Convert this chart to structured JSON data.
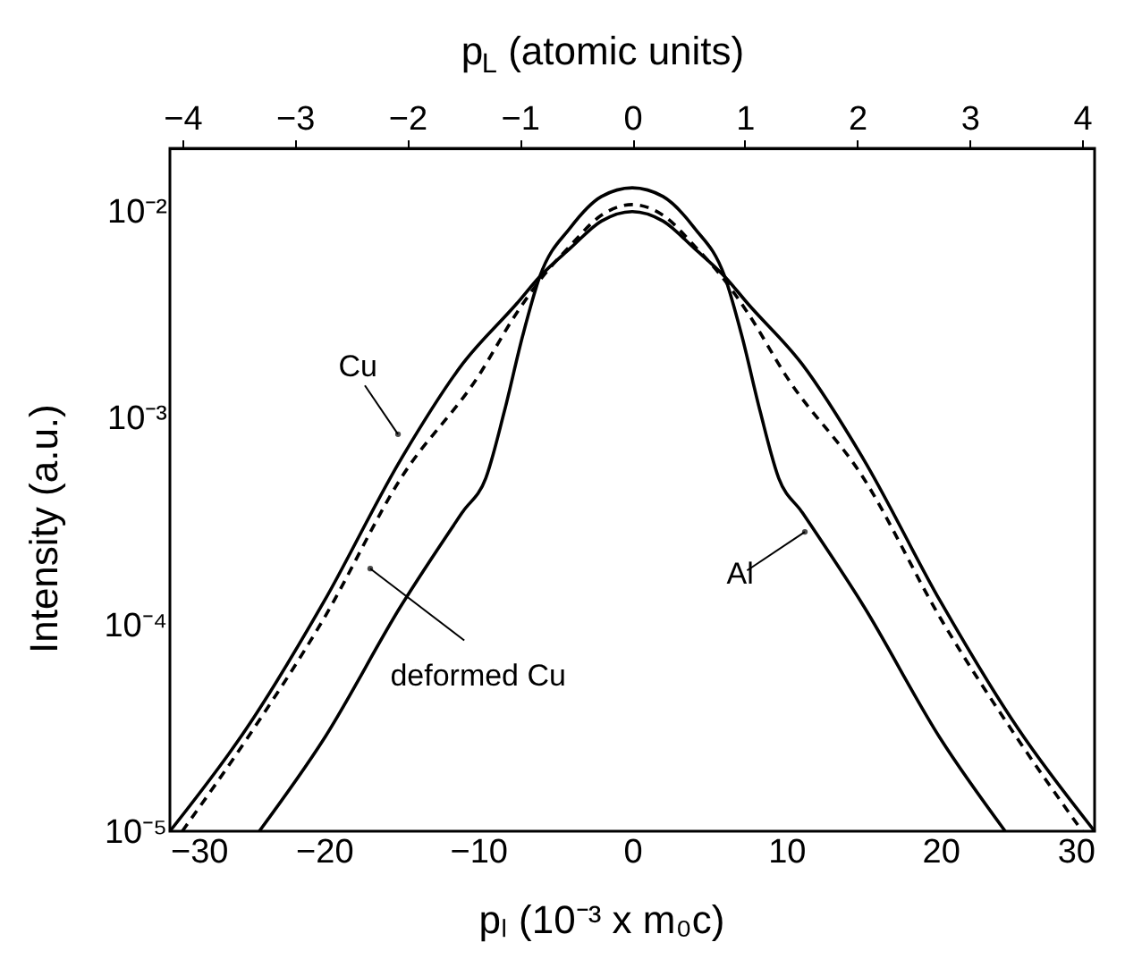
{
  "chart_data": {
    "type": "line",
    "xlabel": "pₗ (10⁻³ x m₀c)",
    "ylabel": "Intensity (a.u.)",
    "x2label": "p$_{L}$ (atomic units)",
    "xlim": [
      -30,
      30
    ],
    "xticks": [
      -30,
      -20,
      -10,
      0,
      10,
      20,
      30
    ],
    "x2lim": [
      -4.111,
      4.111
    ],
    "x2ticks": [
      -4,
      -3,
      -2,
      -1,
      0,
      1,
      2,
      3,
      4
    ],
    "ylim": [
      1e-05,
      0.02
    ],
    "log": "y",
    "yticks": [
      {
        "value": 1e-05,
        "label": "10⁻⁵"
      },
      {
        "value": 0.0001,
        "label": "10⁻⁴"
      },
      {
        "value": 0.001,
        "label": "10⁻³"
      },
      {
        "value": 0.01,
        "label": "10⁻²"
      }
    ],
    "grid": false,
    "marker": "none",
    "series": [
      {
        "color": "#000000",
        "line_style": "solid",
        "x": [
          -30,
          -25,
          -20,
          -15,
          -11,
          -7.5,
          -6,
          -4,
          -2,
          0,
          2,
          4,
          6,
          7.5,
          11,
          15,
          20,
          25,
          30
        ],
        "values": [
          1e-05,
          3.16e-05,
          0.000129,
          0.00063,
          0.00182,
          0.00355,
          0.0048,
          0.0066,
          0.0089,
          0.0099,
          0.0089,
          0.0066,
          0.0048,
          0.00355,
          0.00182,
          0.00063,
          0.000129,
          3.16e-05,
          1e-05
        ]
      },
      {
        "color": "#000000",
        "line_style": "dashed",
        "x": [
          -29.2,
          -25,
          -20,
          -15,
          -10,
          -7.5,
          -6,
          -4,
          -2,
          0,
          2,
          4,
          6,
          7.5,
          10,
          15,
          20,
          25,
          29.2
        ],
        "values": [
          1e-05,
          2.8e-05,
          0.000107,
          0.00051,
          0.00158,
          0.0032,
          0.0046,
          0.0068,
          0.0095,
          0.0107,
          0.0095,
          0.0068,
          0.0046,
          0.0032,
          0.00158,
          0.00051,
          0.000107,
          2.8e-05,
          1e-05
        ]
      },
      {
        "color": "#000000",
        "line_style": "solid",
        "x": [
          -24.2,
          -20,
          -15,
          -11,
          -9.5,
          -8.3,
          -7.1,
          -6,
          -4,
          -2,
          0,
          2,
          4,
          6,
          7.1,
          8.3,
          9.5,
          11,
          15,
          20,
          24.2
        ],
        "values": [
          1e-05,
          2.8e-05,
          0.000123,
          0.00035,
          0.00051,
          0.00107,
          0.0025,
          0.0048,
          0.0083,
          0.0117,
          0.0129,
          0.0117,
          0.0083,
          0.0048,
          0.0025,
          0.00107,
          0.00051,
          0.00035,
          0.000123,
          2.8e-05,
          1e-05
        ]
      }
    ],
    "annotations": [
      {
        "text": "Cu",
        "x": -15.2,
        "y": 0.00083
      },
      {
        "text": "deformed Cu",
        "x": -17.0,
        "y": 0.000186
      },
      {
        "text": "Al",
        "x": 11.2,
        "y": 0.00028
      }
    ]
  }
}
